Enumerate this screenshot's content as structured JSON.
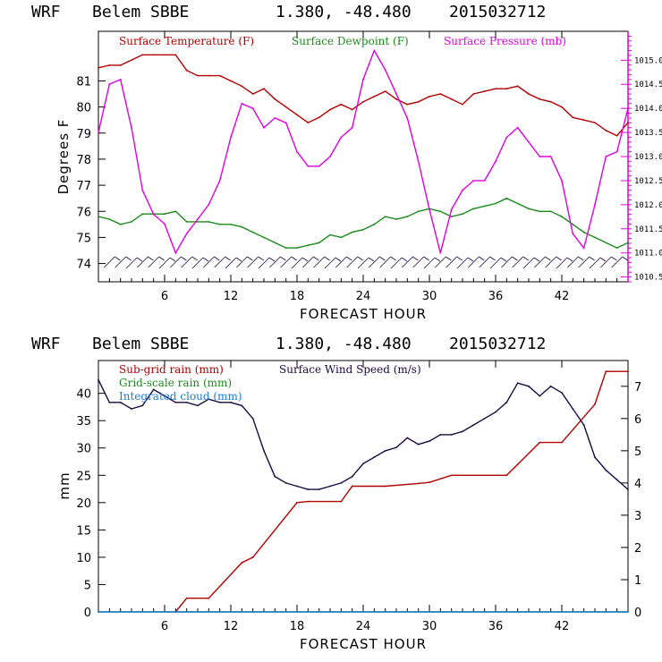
{
  "chart_data": [
    {
      "type": "line",
      "header": {
        "model": "WRF",
        "station": "Belem SBBE",
        "coords": "1.380, -48.480",
        "init": "2015032712"
      },
      "xlabel": "FORECAST HOUR",
      "xlim": [
        0,
        48
      ],
      "xticks": [
        6,
        12,
        18,
        24,
        30,
        36,
        42
      ],
      "ylabel": "Degrees F",
      "ylim": [
        73.3,
        82.9
      ],
      "yticks": [
        74,
        75,
        76,
        77,
        78,
        79,
        80,
        81
      ],
      "y2lim": [
        1010.4,
        1015.6
      ],
      "y2ticks": [
        1010.5,
        1011.0,
        1011.5,
        1012.0,
        1012.5,
        1013.0,
        1013.5,
        1014.0,
        1014.5,
        1015.0
      ],
      "y2ticklabels": [
        "1010.5",
        "1011.0",
        "1011.5",
        "1012.0",
        "1012.5",
        "1013.0",
        "1013.5",
        "1014.0",
        "1014.5",
        "1015.0"
      ],
      "series": [
        {
          "name": "Surface Temperature (F)",
          "color": "#b00000",
          "axis": "left",
          "x": [
            0,
            1,
            2,
            3,
            4,
            5,
            6,
            7,
            8,
            9,
            10,
            11,
            12,
            13,
            14,
            15,
            16,
            17,
            18,
            19,
            20,
            21,
            22,
            23,
            24,
            25,
            26,
            27,
            28,
            29,
            30,
            31,
            32,
            33,
            34,
            35,
            36,
            37,
            38,
            39,
            40,
            41,
            42,
            43,
            44,
            45,
            46,
            47,
            48
          ],
          "values": [
            81.5,
            81.6,
            81.6,
            81.8,
            82.0,
            82.0,
            82.0,
            82.0,
            81.4,
            81.2,
            81.2,
            81.2,
            81.0,
            80.8,
            80.5,
            80.7,
            80.3,
            80.0,
            79.7,
            79.4,
            79.6,
            79.9,
            80.1,
            79.9,
            80.2,
            80.4,
            80.6,
            80.3,
            80.1,
            80.2,
            80.4,
            80.5,
            80.3,
            80.1,
            80.5,
            80.6,
            80.7,
            80.7,
            80.8,
            80.5,
            80.3,
            80.2,
            80.0,
            79.6,
            79.5,
            79.4,
            79.1,
            78.9,
            79.4
          ]
        },
        {
          "name": "Surface Dewpoint (F)",
          "color": "#1a8a1a",
          "axis": "left",
          "x": [
            0,
            1,
            2,
            3,
            4,
            5,
            6,
            7,
            8,
            9,
            10,
            11,
            12,
            13,
            14,
            15,
            16,
            17,
            18,
            19,
            20,
            21,
            22,
            23,
            24,
            25,
            26,
            27,
            28,
            29,
            30,
            31,
            32,
            33,
            34,
            35,
            36,
            37,
            38,
            39,
            40,
            41,
            42,
            43,
            44,
            45,
            46,
            47,
            48
          ],
          "values": [
            75.8,
            75.7,
            75.5,
            75.6,
            75.9,
            75.9,
            75.9,
            76.0,
            75.6,
            75.6,
            75.6,
            75.5,
            75.5,
            75.4,
            75.2,
            75.0,
            74.8,
            74.6,
            74.6,
            74.7,
            74.8,
            75.1,
            75.0,
            75.2,
            75.3,
            75.5,
            75.8,
            75.7,
            75.8,
            76.0,
            76.1,
            76.0,
            75.8,
            75.9,
            76.1,
            76.2,
            76.3,
            76.5,
            76.3,
            76.1,
            76.0,
            76.0,
            75.8,
            75.5,
            75.2,
            75.0,
            74.8,
            74.6,
            74.8
          ]
        },
        {
          "name": "Surface Pressure (mb)",
          "color": "#e000e0",
          "axis": "right",
          "x": [
            0,
            1,
            2,
            3,
            4,
            5,
            6,
            7,
            8,
            9,
            10,
            11,
            12,
            13,
            14,
            15,
            16,
            17,
            18,
            19,
            20,
            21,
            22,
            23,
            24,
            25,
            26,
            27,
            28,
            29,
            30,
            31,
            32,
            33,
            34,
            35,
            36,
            37,
            38,
            39,
            40,
            41,
            42,
            43,
            44,
            45,
            46,
            47,
            48
          ],
          "values": [
            1013.5,
            1014.5,
            1014.6,
            1013.6,
            1012.3,
            1011.8,
            1011.6,
            1011.0,
            1011.4,
            1011.7,
            1012.0,
            1012.5,
            1013.4,
            1014.1,
            1014.0,
            1013.6,
            1013.8,
            1013.7,
            1013.1,
            1012.8,
            1012.8,
            1013.0,
            1013.4,
            1013.6,
            1014.6,
            1015.2,
            1014.8,
            1014.3,
            1013.8,
            1012.9,
            1011.9,
            1011.0,
            1011.9,
            1012.3,
            1012.5,
            1012.5,
            1012.9,
            1013.4,
            1013.6,
            1013.3,
            1013.0,
            1013.0,
            1012.5,
            1011.4,
            1011.1,
            1012.0,
            1013.0,
            1013.1,
            1014.0
          ]
        }
      ]
    },
    {
      "type": "line",
      "header": {
        "model": "WRF",
        "station": "Belem SBBE",
        "coords": "1.380, -48.480",
        "init": "2015032712"
      },
      "xlabel": "FORECAST HOUR",
      "xlim": [
        0,
        48
      ],
      "xticks": [
        6,
        12,
        18,
        24,
        30,
        36,
        42
      ],
      "ylabel": "mm",
      "ylim": [
        0,
        46
      ],
      "yticks": [
        0,
        5,
        10,
        15,
        20,
        25,
        30,
        35,
        40
      ],
      "y2lim": [
        0,
        7.8
      ],
      "y2ticks": [
        0,
        1,
        2,
        3,
        4,
        5,
        6,
        7
      ],
      "series": [
        {
          "name": "Sub-grid rain (mm)",
          "color": "#b00000",
          "axis": "left",
          "x": [
            7,
            8,
            10,
            13,
            14,
            18,
            19,
            22,
            23,
            26,
            29,
            30,
            32,
            37,
            38,
            40,
            42,
            45,
            46,
            48
          ],
          "values": [
            0,
            2.5,
            2.5,
            9,
            10,
            20,
            20.2,
            20.2,
            23,
            23,
            23.5,
            23.7,
            25,
            25,
            27,
            31,
            31,
            38,
            44,
            44
          ]
        },
        {
          "name": "Grid-scale rain (mm)",
          "color": "#1a8a1a",
          "axis": "left",
          "x": [
            0,
            48
          ],
          "values": [
            0,
            0
          ]
        },
        {
          "name": "Integrated cloud (mm)",
          "color": "#1e7ad6",
          "axis": "left",
          "x": [
            0,
            48
          ],
          "values": [
            0,
            0
          ]
        },
        {
          "name": "Surface Wind Speed (m/s)",
          "color": "#1a0a40",
          "axis": "right",
          "x": [
            0,
            1,
            2,
            3,
            4,
            5,
            6,
            7,
            8,
            9,
            10,
            11,
            12,
            13,
            14,
            15,
            16,
            17,
            18,
            19,
            20,
            21,
            22,
            23,
            24,
            25,
            26,
            27,
            28,
            29,
            30,
            31,
            32,
            33,
            34,
            35,
            36,
            37,
            38,
            39,
            40,
            41,
            42,
            43,
            44,
            45,
            46,
            47,
            48
          ],
          "values": [
            7.2,
            6.5,
            6.5,
            6.3,
            6.4,
            6.9,
            6.7,
            6.5,
            6.5,
            6.4,
            6.6,
            6.5,
            6.5,
            6.4,
            6.0,
            5.0,
            4.2,
            4.0,
            3.9,
            3.8,
            3.8,
            3.9,
            4.0,
            4.2,
            4.6,
            4.8,
            5.0,
            5.1,
            5.4,
            5.2,
            5.3,
            5.5,
            5.5,
            5.6,
            5.8,
            6.0,
            6.2,
            6.5,
            7.1,
            7.0,
            6.7,
            7.0,
            6.8,
            6.3,
            5.8,
            4.8,
            4.4,
            4.1,
            3.8
          ]
        }
      ]
    }
  ]
}
